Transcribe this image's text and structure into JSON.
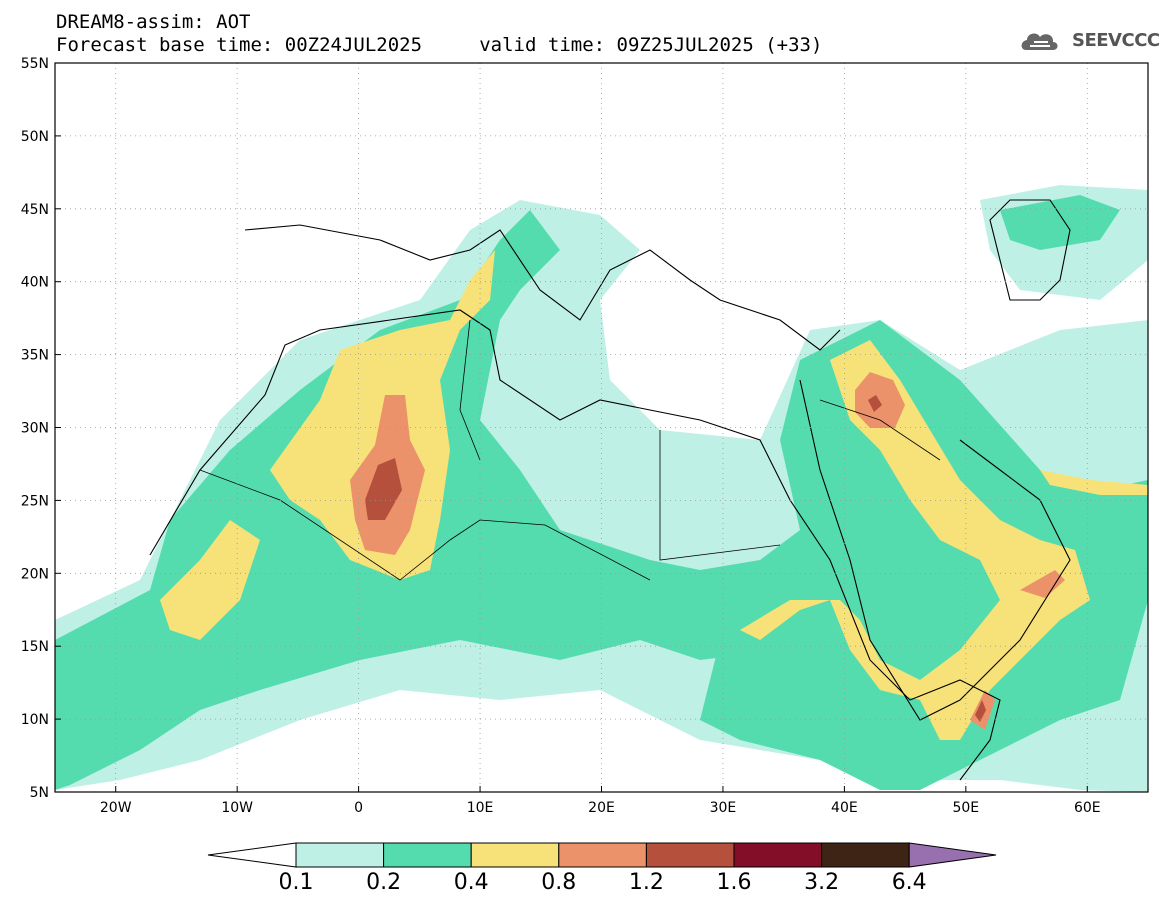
{
  "header": {
    "line1": "DREAM8-assim: AOT",
    "line2": "Forecast base time: 00Z24JUL2025     valid time: 09Z25JUL2025 (+33)"
  },
  "logo": {
    "text": "SEEVCCC",
    "icon": "cloud-icon"
  },
  "map": {
    "lon_range": [
      -25,
      65
    ],
    "lat_range": [
      5,
      55
    ],
    "lat_ticks": [
      "5N",
      "10N",
      "15N",
      "20N",
      "25N",
      "30N",
      "35N",
      "40N",
      "45N",
      "50N",
      "55N"
    ],
    "lon_ticks": [
      "20W",
      "10W",
      "0",
      "10E",
      "20E",
      "30E",
      "40E",
      "50E",
      "60E"
    ],
    "gridlines": true
  },
  "colorbar": {
    "labels": [
      "0.1",
      "0.2",
      "0.4",
      "0.8",
      "1.2",
      "1.6",
      "3.2",
      "6.4"
    ],
    "colors": [
      "#bff0e6",
      "#55dcae",
      "#f7e27a",
      "#eb926a",
      "#b4503c",
      "#820e28",
      "#3e2414",
      "#9870b0"
    ]
  }
}
